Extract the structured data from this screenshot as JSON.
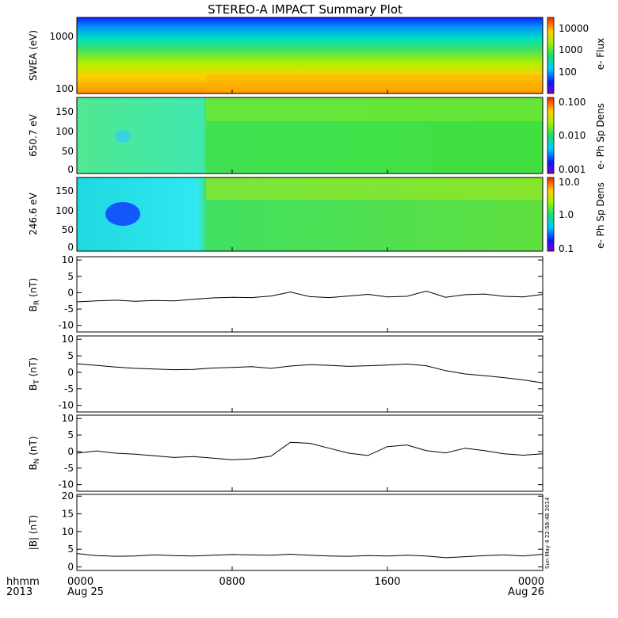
{
  "title": "STEREO-A IMPACT Summary Plot",
  "timestamp": "Sun May  4 22:58:48 2014",
  "x_axis": {
    "label_hhmm": "hhmm",
    "label_year": "2013",
    "ticks": [
      {
        "time": "0000",
        "date": "Aug 25",
        "hour": 0
      },
      {
        "time": "0800",
        "date": "",
        "hour": 8
      },
      {
        "time": "1600",
        "date": "",
        "hour": 16
      },
      {
        "time": "0000",
        "date": "Aug 26",
        "hour": 24
      }
    ]
  },
  "chart_data": [
    {
      "type": "heatmap",
      "ylabel": "SWEA (eV)",
      "y_scale": "log",
      "ytick_labels": [
        "1000",
        "100"
      ],
      "colorbar_label": "e- Flux",
      "colorbar_ticks": [
        "10000",
        "1000",
        "100"
      ],
      "colorbar_scale": "log",
      "note": "flux rises toward low energy; strongest near 100 eV"
    },
    {
      "type": "heatmap",
      "ylabel": "650.7 eV",
      "ytick_labels": [
        "150",
        "100",
        "50",
        "0"
      ],
      "ylim": [
        0,
        180
      ],
      "colorbar_label": "e- Ph Sp Dens",
      "colorbar_ticks": [
        "0.100",
        "0.010",
        "0.001"
      ],
      "colorbar_scale": "log"
    },
    {
      "type": "heatmap",
      "ylabel": "246.6 eV",
      "ytick_labels": [
        "150",
        "100",
        "50",
        "0"
      ],
      "ylim": [
        0,
        180
      ],
      "colorbar_label": "e- Ph Sp Dens",
      "colorbar_ticks": [
        "10.0",
        "1.0",
        "0.1"
      ],
      "colorbar_scale": "log"
    },
    {
      "type": "line",
      "ylabel": "B",
      "ylabel_sub": "R",
      "ylabel_unit": "(nT)",
      "ylim": [
        -12,
        11
      ],
      "yticks": [
        10,
        5,
        0,
        -5,
        -10
      ],
      "x": [
        0,
        1,
        2,
        3,
        4,
        5,
        6,
        7,
        8,
        9,
        10,
        11,
        12,
        13,
        14,
        15,
        16,
        17,
        18,
        19,
        20,
        21,
        22,
        23,
        24
      ],
      "values": [
        -2.8,
        -2.5,
        -2.3,
        -2.6,
        -2.4,
        -2.5,
        -2.0,
        -1.6,
        -1.4,
        -1.5,
        -1.0,
        0.2,
        -1.2,
        -1.5,
        -1.0,
        -0.5,
        -1.3,
        -1.1,
        0.5,
        -1.4,
        -0.6,
        -0.4,
        -1.1,
        -1.3,
        -0.5
      ]
    },
    {
      "type": "line",
      "ylabel": "B",
      "ylabel_sub": "T",
      "ylabel_unit": "(nT)",
      "ylim": [
        -12,
        11
      ],
      "yticks": [
        10,
        5,
        0,
        -5,
        -10
      ],
      "x": [
        0,
        1,
        2,
        3,
        4,
        5,
        6,
        7,
        8,
        9,
        10,
        11,
        12,
        13,
        14,
        15,
        16,
        17,
        18,
        19,
        20,
        21,
        22,
        23,
        24
      ],
      "values": [
        2.6,
        2.1,
        1.6,
        1.2,
        1.0,
        0.8,
        0.9,
        1.3,
        1.5,
        1.7,
        1.2,
        1.9,
        2.3,
        2.1,
        1.8,
        2.0,
        2.2,
        2.5,
        2.0,
        0.5,
        -0.5,
        -1.0,
        -1.6,
        -2.3,
        -3.2
      ]
    },
    {
      "type": "line",
      "ylabel": "B",
      "ylabel_sub": "N",
      "ylabel_unit": "(nT)",
      "ylim": [
        -12,
        11
      ],
      "yticks": [
        10,
        5,
        0,
        -5,
        -10
      ],
      "x": [
        0,
        1,
        2,
        3,
        4,
        5,
        6,
        7,
        8,
        9,
        10,
        11,
        12,
        13,
        14,
        15,
        16,
        17,
        18,
        19,
        20,
        21,
        22,
        23,
        24
      ],
      "values": [
        -0.5,
        0.2,
        -0.5,
        -0.8,
        -1.3,
        -1.8,
        -1.5,
        -2.0,
        -2.5,
        -2.2,
        -1.4,
        2.8,
        2.5,
        1.0,
        -0.5,
        -1.2,
        1.5,
        2.0,
        0.3,
        -0.4,
        1.0,
        0.3,
        -0.7,
        -1.1,
        -0.7
      ]
    },
    {
      "type": "line",
      "ylabel": "|B| (nT)",
      "ylim": [
        -1,
        20.5
      ],
      "yticks": [
        20,
        15,
        10,
        5,
        0
      ],
      "x": [
        0,
        1,
        2,
        3,
        4,
        5,
        6,
        7,
        8,
        9,
        10,
        11,
        12,
        13,
        14,
        15,
        16,
        17,
        18,
        19,
        20,
        21,
        22,
        23,
        24
      ],
      "values": [
        3.8,
        3.2,
        3.0,
        3.1,
        3.4,
        3.2,
        3.1,
        3.3,
        3.5,
        3.4,
        3.3,
        3.6,
        3.3,
        3.1,
        3.0,
        3.2,
        3.1,
        3.3,
        3.1,
        2.6,
        2.9,
        3.2,
        3.4,
        3.1,
        3.6
      ]
    }
  ]
}
